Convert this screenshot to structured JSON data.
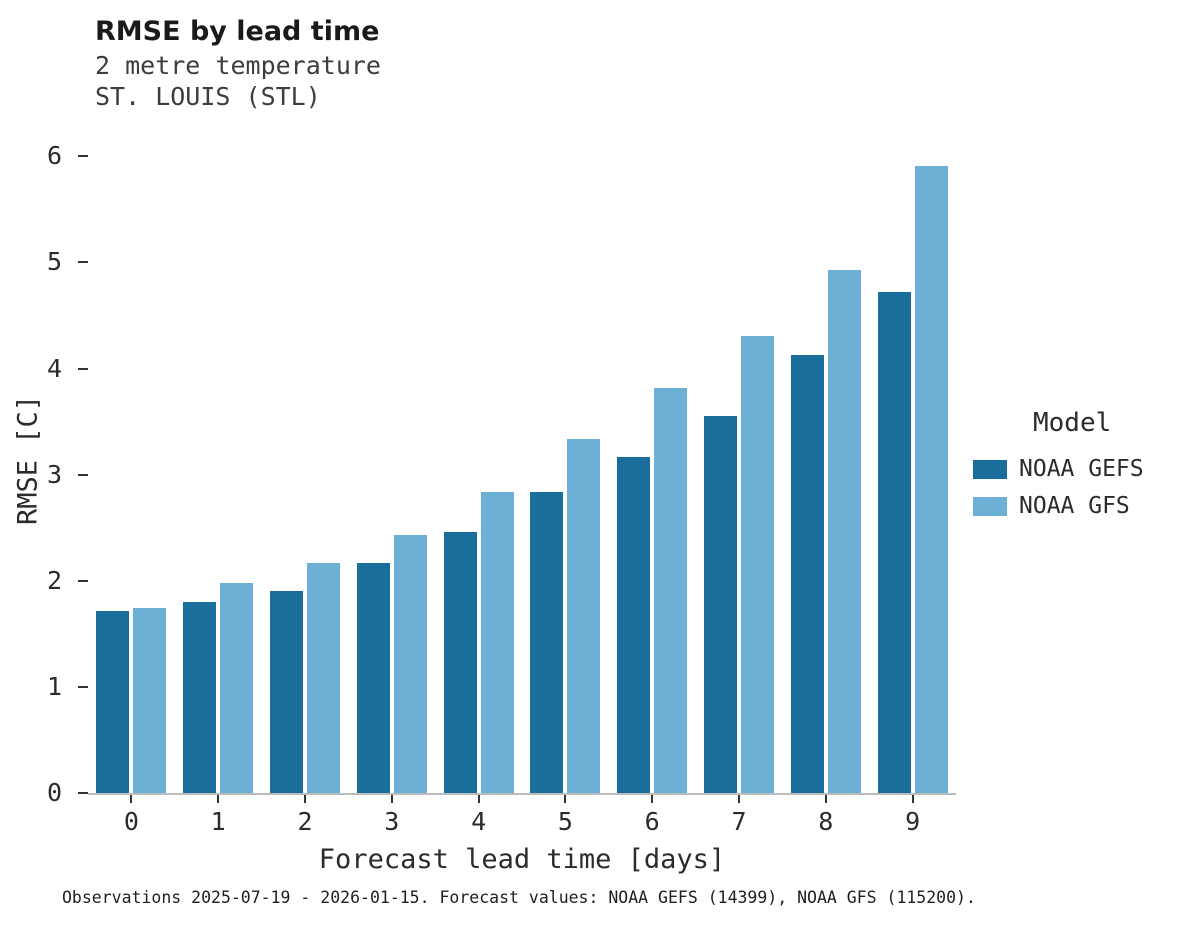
{
  "header": {
    "title": "RMSE by lead time",
    "subtitle1": "2 metre temperature",
    "subtitle2": "ST. LOUIS (STL)"
  },
  "caption": "Observations 2025-07-19 - 2026-01-15. Forecast values: NOAA GEFS (14399), NOAA GFS (115200).",
  "chart_data": {
    "type": "bar",
    "title": "RMSE by lead time",
    "subtitle": [
      "2 metre temperature",
      "ST. LOUIS (STL)"
    ],
    "xlabel": "Forecast lead time [days]",
    "ylabel": "RMSE [C]",
    "categories": [
      0,
      1,
      2,
      3,
      4,
      5,
      6,
      7,
      8,
      9
    ],
    "series": [
      {
        "name": "NOAA GEFS",
        "color": "#1a6e9c",
        "values": [
          1.72,
          1.8,
          1.9,
          2.17,
          2.46,
          2.84,
          3.17,
          3.55,
          4.13,
          4.72
        ]
      },
      {
        "name": "NOAA GFS",
        "color": "#6cb0d6",
        "values": [
          1.74,
          1.98,
          2.17,
          2.43,
          2.84,
          3.34,
          3.82,
          4.31,
          4.93,
          5.91
        ]
      }
    ],
    "ylim": [
      0,
      6.2
    ],
    "yticks": [
      0,
      1,
      2,
      3,
      4,
      5,
      6
    ],
    "grid": false,
    "legend_title": "Model",
    "legend_position": "right",
    "background": "#ffffff"
  }
}
